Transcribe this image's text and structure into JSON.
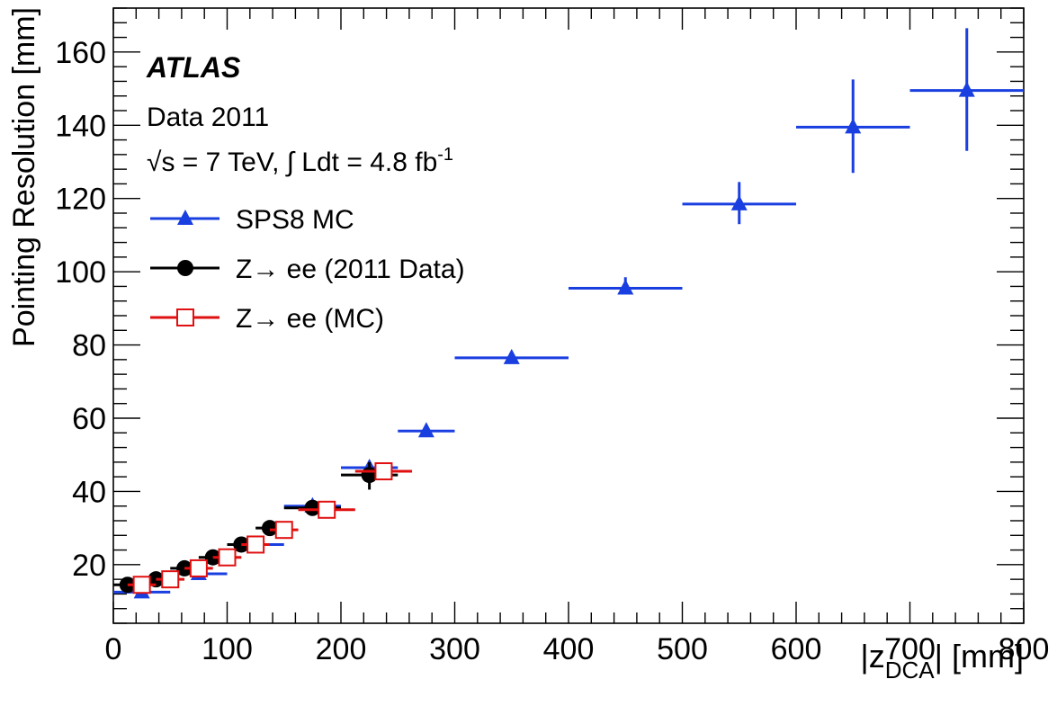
{
  "chart_data": {
    "type": "scatter",
    "title": "",
    "xlabel": "|z_DCA| [mm]",
    "xlabel_main": "|z",
    "xlabel_sub": "DCA",
    "xlabel_unit": "| [mm]",
    "ylabel": "Pointing Resolution [mm]",
    "xlim": [
      0,
      800
    ],
    "ylim": [
      4,
      172
    ],
    "xticks": [
      0,
      100,
      200,
      300,
      400,
      500,
      600,
      700,
      800
    ],
    "yticks": [
      20,
      40,
      60,
      80,
      100,
      120,
      140,
      160
    ],
    "grid": false,
    "legend_position": "top-left",
    "annotations": {
      "atlas": "ATLAS",
      "dataset": "Data 2011",
      "energy": "√s = 7 TeV, ∫ Ldt = 4.8 fb",
      "energy_sup": "-1"
    },
    "series": [
      {
        "name": "SPS8 MC",
        "color": "#1a3fe0",
        "marker": "triangle-up",
        "points": [
          {
            "x": 25,
            "xlo": 0,
            "xhi": 50,
            "y": 12.5,
            "ylo": 12.5,
            "yhi": 12.5
          },
          {
            "x": 75,
            "xlo": 50,
            "xhi": 100,
            "y": 17.5,
            "ylo": 17.5,
            "yhi": 17.5
          },
          {
            "x": 125,
            "xlo": 100,
            "xhi": 150,
            "y": 25.5,
            "ylo": 25.5,
            "yhi": 25.5
          },
          {
            "x": 175,
            "xlo": 150,
            "xhi": 200,
            "y": 36.0,
            "ylo": 36.0,
            "yhi": 36.0
          },
          {
            "x": 225,
            "xlo": 200,
            "xhi": 250,
            "y": 46.5,
            "ylo": 46.5,
            "yhi": 46.5
          },
          {
            "x": 275,
            "xlo": 250,
            "xhi": 300,
            "y": 56.5,
            "ylo": 56.5,
            "yhi": 56.5
          },
          {
            "x": 350,
            "xlo": 300,
            "xhi": 400,
            "y": 76.5,
            "ylo": 76.5,
            "yhi": 76.5
          },
          {
            "x": 450,
            "xlo": 400,
            "xhi": 500,
            "y": 95.5,
            "ylo": 94.0,
            "yhi": 98.5
          },
          {
            "x": 550,
            "xlo": 500,
            "xhi": 600,
            "y": 118.5,
            "ylo": 113.0,
            "yhi": 124.5
          },
          {
            "x": 650,
            "xlo": 600,
            "xhi": 700,
            "y": 139.5,
            "ylo": 127.0,
            "yhi": 152.5
          },
          {
            "x": 750,
            "xlo": 700,
            "xhi": 800,
            "y": 149.5,
            "ylo": 133.0,
            "yhi": 166.5
          }
        ]
      },
      {
        "name": "Z→ ee (2011 Data)",
        "color": "#000000",
        "marker": "circle",
        "points": [
          {
            "x": 12.5,
            "xlo": 0,
            "xhi": 25,
            "y": 14.5,
            "ylo": 14.5,
            "yhi": 14.5
          },
          {
            "x": 37.5,
            "xlo": 25,
            "xhi": 50,
            "y": 16.0,
            "ylo": 16.0,
            "yhi": 16.0
          },
          {
            "x": 62.5,
            "xlo": 50,
            "xhi": 75,
            "y": 19.0,
            "ylo": 19.0,
            "yhi": 19.0
          },
          {
            "x": 87.5,
            "xlo": 75,
            "xhi": 100,
            "y": 22.0,
            "ylo": 22.0,
            "yhi": 22.0
          },
          {
            "x": 112.5,
            "xlo": 100,
            "xhi": 125,
            "y": 25.5,
            "ylo": 25.5,
            "yhi": 25.5
          },
          {
            "x": 137.5,
            "xlo": 125,
            "xhi": 150,
            "y": 30.0,
            "ylo": 30.0,
            "yhi": 30.0
          },
          {
            "x": 175,
            "xlo": 150,
            "xhi": 200,
            "y": 35.5,
            "ylo": 35.5,
            "yhi": 35.5
          },
          {
            "x": 225,
            "xlo": 200,
            "xhi": 250,
            "y": 44.5,
            "ylo": 40.5,
            "yhi": 48.0
          }
        ]
      },
      {
        "name": "Z→ ee (MC)",
        "color": "#e01010",
        "marker": "open-square",
        "points": [
          {
            "x": 25,
            "xlo": 12.5,
            "xhi": 37.5,
            "y": 14.5,
            "ylo": 14.5,
            "yhi": 14.5
          },
          {
            "x": 50,
            "xlo": 37.5,
            "xhi": 62.5,
            "y": 16.0,
            "ylo": 16.0,
            "yhi": 16.0
          },
          {
            "x": 75,
            "xlo": 62.5,
            "xhi": 87.5,
            "y": 19.0,
            "ylo": 19.0,
            "yhi": 19.0
          },
          {
            "x": 100,
            "xlo": 87.5,
            "xhi": 112.5,
            "y": 22.0,
            "ylo": 22.0,
            "yhi": 22.0
          },
          {
            "x": 125,
            "xlo": 112.5,
            "xhi": 137.5,
            "y": 25.5,
            "ylo": 25.5,
            "yhi": 25.5
          },
          {
            "x": 150,
            "xlo": 137.5,
            "xhi": 162.5,
            "y": 29.5,
            "ylo": 29.5,
            "yhi": 29.5
          },
          {
            "x": 187.5,
            "xlo": 162.5,
            "xhi": 212.5,
            "y": 35.0,
            "ylo": 35.0,
            "yhi": 35.0
          },
          {
            "x": 237.5,
            "xlo": 212.5,
            "xhi": 262.5,
            "y": 45.5,
            "ylo": 45.5,
            "yhi": 45.5
          }
        ]
      }
    ]
  }
}
